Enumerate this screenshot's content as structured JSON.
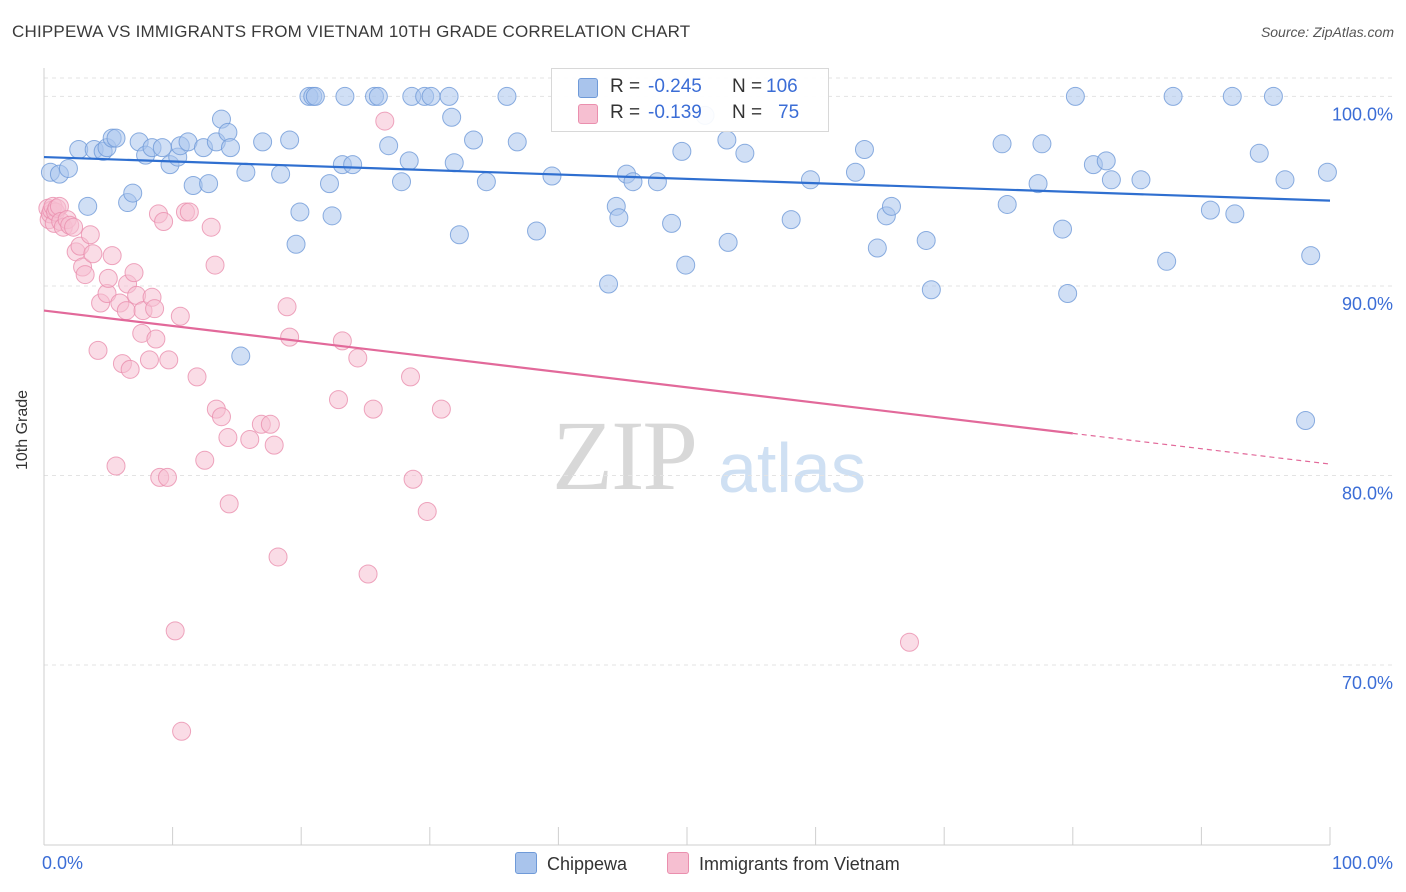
{
  "header": {
    "title": "CHIPPEWA VS IMMIGRANTS FROM VIETNAM 10TH GRADE CORRELATION CHART",
    "source": "Source: ZipAtlas.com"
  },
  "watermark": {
    "zip": "ZIP",
    "atlas": "atlas"
  },
  "legend_box": {
    "rows": [
      {
        "r_label": "R =",
        "r_value": "-0.245",
        "n_label": "N =",
        "n_value": "106"
      },
      {
        "r_label": "R =",
        "r_value": "-0.139",
        "n_label": "N =",
        "n_value": "75"
      }
    ]
  },
  "bottom_legend": {
    "series1": "Chippewa",
    "series2": "Immigrants from Vietnam"
  },
  "colors": {
    "blue_fill": "#a9c4ec",
    "blue_stroke": "#6f9ad8",
    "blue_line": "#2f6fd0",
    "pink_fill": "#f6bfd1",
    "pink_stroke": "#ea8fae",
    "pink_line": "#e2699a",
    "axis_text": "#3b6dd6",
    "grid": "#e3e3e3"
  },
  "chart_data": {
    "type": "scatter",
    "title": "CHIPPEWA VS IMMIGRANTS FROM VIETNAM 10TH GRADE CORRELATION CHART",
    "xlabel": "",
    "ylabel": "10th Grade",
    "xlim": [
      0,
      100
    ],
    "ylim": [
      60.5,
      101.5
    ],
    "x_tick_labels": [
      "0.0%",
      "100.0%"
    ],
    "y_ticks": [
      70,
      80,
      90,
      100
    ],
    "y_tick_labels": [
      "70.0%",
      "80.0%",
      "90.0%",
      "100.0%"
    ],
    "grid": "horizontal dashed",
    "series": [
      {
        "name": "Chippewa",
        "R": -0.245,
        "N": 106,
        "trend": {
          "x0": 0,
          "y0": 96.8,
          "x1": 100,
          "y1": 94.5
        },
        "points": [
          [
            0.5,
            96
          ],
          [
            1.2,
            95.9
          ],
          [
            1.9,
            96.2
          ],
          [
            2.7,
            97.2
          ],
          [
            3.4,
            94.2
          ],
          [
            3.9,
            97.2
          ],
          [
            4.6,
            97.1
          ],
          [
            4.9,
            97.3
          ],
          [
            5.3,
            97.8
          ],
          [
            5.6,
            97.8
          ],
          [
            6.5,
            94.4
          ],
          [
            6.9,
            94.9
          ],
          [
            7.4,
            97.6
          ],
          [
            7.9,
            96.9
          ],
          [
            8.4,
            97.3
          ],
          [
            9.2,
            97.3
          ],
          [
            9.8,
            96.4
          ],
          [
            10.4,
            96.8
          ],
          [
            10.6,
            97.4
          ],
          [
            11.2,
            97.6
          ],
          [
            11.6,
            95.3
          ],
          [
            12.4,
            97.3
          ],
          [
            12.8,
            95.4
          ],
          [
            13.4,
            97.6
          ],
          [
            13.8,
            98.8
          ],
          [
            14.3,
            98.1
          ],
          [
            14.5,
            97.3
          ],
          [
            15.3,
            86.3
          ],
          [
            15.7,
            96
          ],
          [
            17,
            97.6
          ],
          [
            18.4,
            95.9
          ],
          [
            19.1,
            97.7
          ],
          [
            19.6,
            92.2
          ],
          [
            19.9,
            93.9
          ],
          [
            20.6,
            100
          ],
          [
            20.9,
            100
          ],
          [
            21.1,
            100
          ],
          [
            22.2,
            95.4
          ],
          [
            22.4,
            93.7
          ],
          [
            23.2,
            96.4
          ],
          [
            23.4,
            100
          ],
          [
            24,
            96.4
          ],
          [
            25.7,
            100
          ],
          [
            26,
            100
          ],
          [
            26.8,
            97.4
          ],
          [
            27.8,
            95.5
          ],
          [
            28.4,
            96.6
          ],
          [
            28.6,
            100
          ],
          [
            29.6,
            100
          ],
          [
            30.1,
            100
          ],
          [
            31.5,
            100
          ],
          [
            31.7,
            98.9
          ],
          [
            31.9,
            96.5
          ],
          [
            32.3,
            92.7
          ],
          [
            33.4,
            97.7
          ],
          [
            34.4,
            95.5
          ],
          [
            36,
            100
          ],
          [
            36.8,
            97.6
          ],
          [
            38.3,
            92.9
          ],
          [
            39.5,
            95.8
          ],
          [
            43.9,
            90.1
          ],
          [
            44.5,
            94.2
          ],
          [
            44.7,
            93.6
          ],
          [
            45.3,
            95.9
          ],
          [
            45.8,
            95.5
          ],
          [
            47.7,
            95.5
          ],
          [
            48.8,
            93.3
          ],
          [
            49.6,
            97.1
          ],
          [
            49.9,
            91.1
          ],
          [
            51.4,
            99
          ],
          [
            53.1,
            97.7
          ],
          [
            53.2,
            92.3
          ],
          [
            54.5,
            97
          ],
          [
            58.1,
            93.5
          ],
          [
            59.6,
            95.6
          ],
          [
            63.1,
            96
          ],
          [
            63.8,
            97.2
          ],
          [
            64.8,
            92
          ],
          [
            65.5,
            93.7
          ],
          [
            65.9,
            94.2
          ],
          [
            68.6,
            92.4
          ],
          [
            69,
            89.8
          ],
          [
            74.5,
            97.5
          ],
          [
            74.9,
            94.3
          ],
          [
            77.3,
            95.4
          ],
          [
            77.6,
            97.5
          ],
          [
            79.2,
            93
          ],
          [
            79.6,
            89.6
          ],
          [
            80.2,
            100
          ],
          [
            81.6,
            96.4
          ],
          [
            82.6,
            96.6
          ],
          [
            83,
            95.6
          ],
          [
            85.3,
            95.6
          ],
          [
            87.3,
            91.3
          ],
          [
            87.8,
            100
          ],
          [
            90.7,
            94
          ],
          [
            92.6,
            93.8
          ],
          [
            92.4,
            100
          ],
          [
            94.5,
            97
          ],
          [
            95.6,
            100
          ],
          [
            96.5,
            95.6
          ],
          [
            98.1,
            82.9
          ],
          [
            98.5,
            91.6
          ],
          [
            99.8,
            96
          ]
        ]
      },
      {
        "name": "Immigrants from Vietnam",
        "R": -0.139,
        "N": 75,
        "trend": {
          "x0": 0,
          "y0": 88.7,
          "x1": 100,
          "y1": 80.6,
          "solid_until_x": 80
        },
        "points": [
          [
            0.3,
            94.1
          ],
          [
            0.4,
            93.5
          ],
          [
            0.5,
            93.8
          ],
          [
            0.6,
            94
          ],
          [
            0.7,
            94.2
          ],
          [
            0.8,
            93.3
          ],
          [
            0.9,
            93.9
          ],
          [
            1,
            94.1
          ],
          [
            1.2,
            94.2
          ],
          [
            1.3,
            93.4
          ],
          [
            1.5,
            93.1
          ],
          [
            1.8,
            93.5
          ],
          [
            2,
            93.2
          ],
          [
            2.3,
            93.1
          ],
          [
            2.5,
            91.8
          ],
          [
            2.8,
            92.1
          ],
          [
            3,
            91
          ],
          [
            3.2,
            90.6
          ],
          [
            3.6,
            92.7
          ],
          [
            3.8,
            91.7
          ],
          [
            4.2,
            86.6
          ],
          [
            4.4,
            89.1
          ],
          [
            4.9,
            89.6
          ],
          [
            5,
            90.4
          ],
          [
            5.3,
            91.6
          ],
          [
            5.6,
            80.5
          ],
          [
            5.9,
            89.1
          ],
          [
            6.1,
            85.9
          ],
          [
            6.4,
            88.7
          ],
          [
            6.5,
            90.1
          ],
          [
            6.7,
            85.6
          ],
          [
            7,
            90.7
          ],
          [
            7.2,
            89.5
          ],
          [
            7.6,
            87.5
          ],
          [
            7.7,
            88.7
          ],
          [
            8.2,
            86.1
          ],
          [
            8.4,
            89.4
          ],
          [
            8.6,
            88.8
          ],
          [
            8.7,
            87.2
          ],
          [
            8.9,
            93.8
          ],
          [
            9,
            79.9
          ],
          [
            9.3,
            93.4
          ],
          [
            9.6,
            79.9
          ],
          [
            9.7,
            86.1
          ],
          [
            10.2,
            71.8
          ],
          [
            10.6,
            88.4
          ],
          [
            10.7,
            66.5
          ],
          [
            11,
            93.9
          ],
          [
            11.3,
            93.9
          ],
          [
            11.9,
            85.2
          ],
          [
            12.5,
            80.8
          ],
          [
            13,
            93.1
          ],
          [
            13.3,
            91.1
          ],
          [
            13.4,
            83.5
          ],
          [
            13.8,
            83.1
          ],
          [
            14.3,
            82
          ],
          [
            14.4,
            78.5
          ],
          [
            16,
            81.9
          ],
          [
            16.9,
            82.7
          ],
          [
            17.6,
            82.7
          ],
          [
            17.9,
            81.6
          ],
          [
            18.2,
            75.7
          ],
          [
            18.9,
            88.9
          ],
          [
            19.1,
            87.3
          ],
          [
            22.9,
            84
          ],
          [
            23.2,
            87.1
          ],
          [
            24.4,
            86.2
          ],
          [
            25.2,
            74.8
          ],
          [
            25.6,
            83.5
          ],
          [
            26.5,
            98.7
          ],
          [
            28.5,
            85.2
          ],
          [
            28.7,
            79.8
          ],
          [
            29.8,
            78.1
          ],
          [
            30.9,
            83.5
          ],
          [
            67.3,
            71.2
          ]
        ]
      }
    ]
  }
}
